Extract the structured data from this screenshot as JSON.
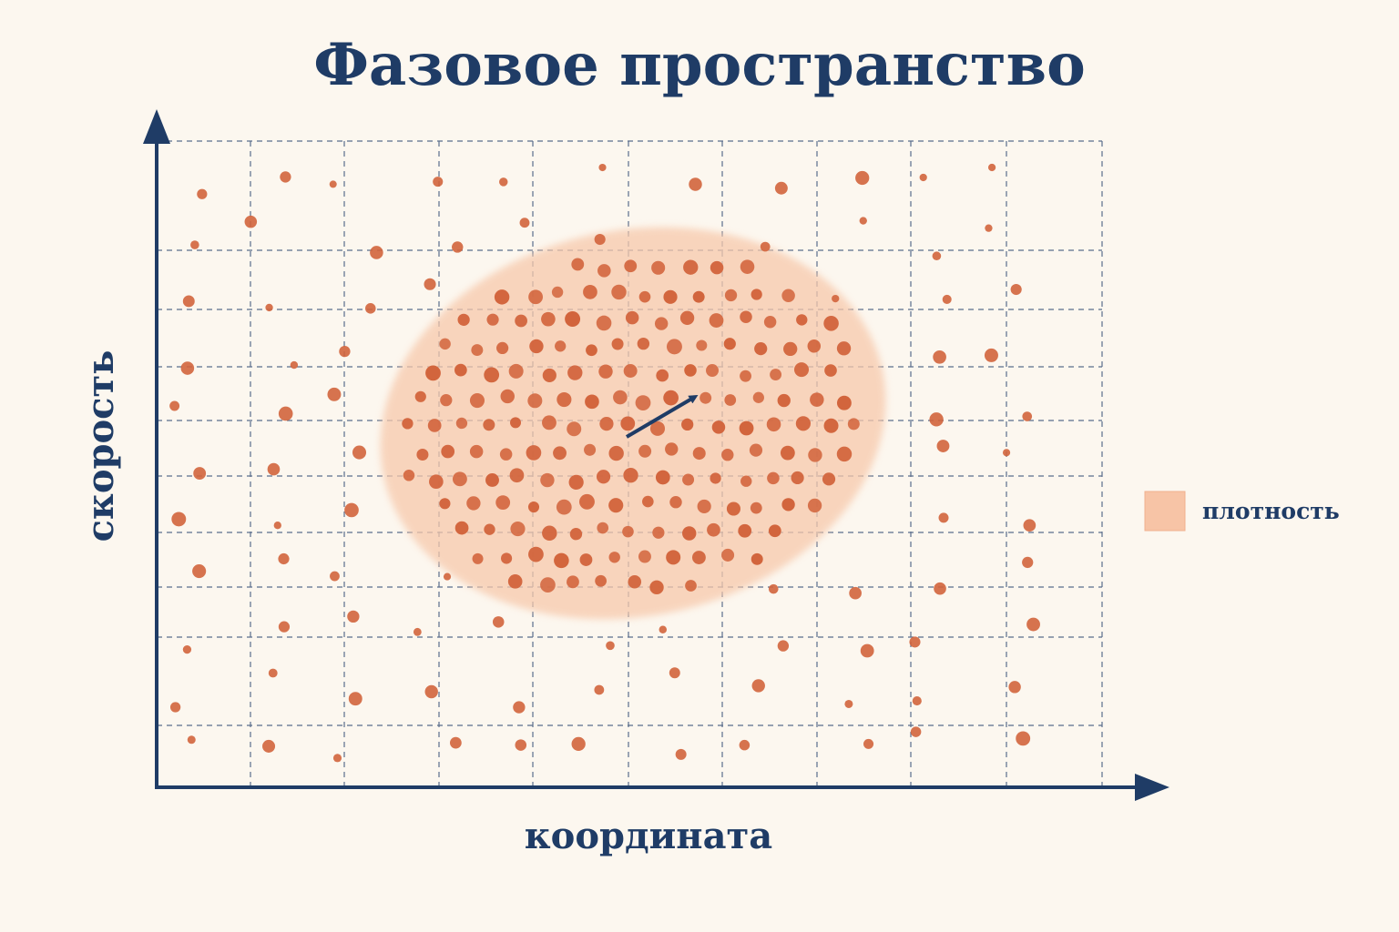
{
  "header": {
    "title": "Фазовое пространство"
  },
  "axes": {
    "x_label": "координата",
    "y_label": "скорость"
  },
  "legend": {
    "label": "плотность"
  }
}
